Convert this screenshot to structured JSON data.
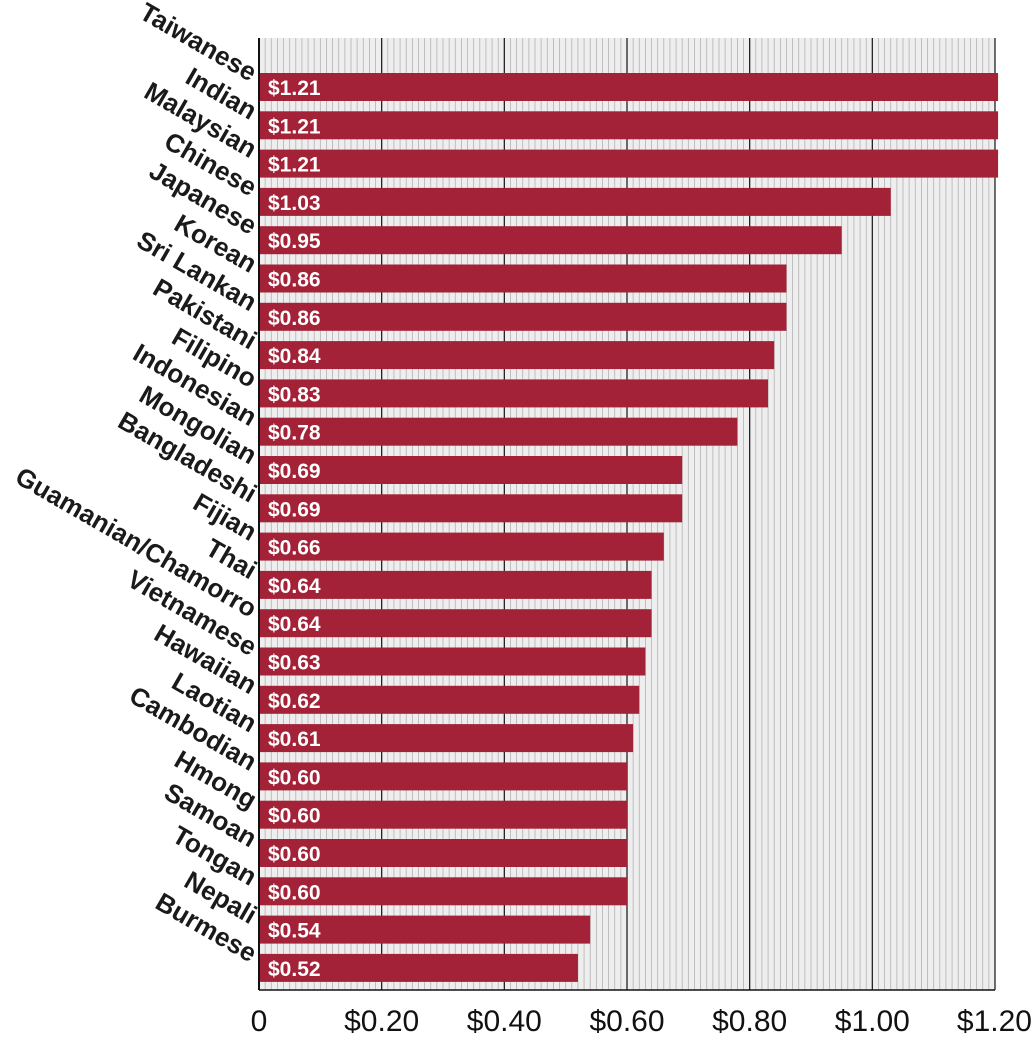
{
  "chart_data": {
    "type": "bar",
    "orientation": "horizontal",
    "title": "",
    "xlabel": "",
    "ylabel": "",
    "xlim": [
      0,
      1.2
    ],
    "x_ticks": [
      0,
      0.2,
      0.4,
      0.6,
      0.8,
      1.0,
      1.2
    ],
    "x_tick_labels": [
      "0",
      "$0.20",
      "$0.40",
      "$0.60",
      "$0.80",
      "$1.00",
      "$1.20"
    ],
    "grid": true,
    "categories": [
      "Taiwanese",
      "Indian",
      "Malaysian",
      "Chinese",
      "Japanese",
      "Korean",
      "Sri Lankan",
      "Pakistani",
      "Filipino",
      "Indonesian",
      "Mongolian",
      "Bangladeshi",
      "Fijian",
      "Thai",
      "Guamanian/Chamorro",
      "Vietnamese",
      "Hawaiian",
      "Laotian",
      "Cambodian",
      "Hmong",
      "Samoan",
      "Tongan",
      "Nepali",
      "Burmese"
    ],
    "values": [
      1.21,
      1.21,
      1.21,
      1.03,
      0.95,
      0.86,
      0.86,
      0.84,
      0.83,
      0.78,
      0.69,
      0.69,
      0.66,
      0.64,
      0.64,
      0.63,
      0.62,
      0.61,
      0.6,
      0.6,
      0.6,
      0.6,
      0.54,
      0.52
    ],
    "value_labels": [
      "$1.21",
      "$1.21",
      "$1.21",
      "$1.03",
      "$0.95",
      "$0.86",
      "$0.86",
      "$0.84",
      "$0.83",
      "$0.78",
      "$0.69",
      "$0.69",
      "$0.66",
      "$0.64",
      "$0.64",
      "$0.63",
      "$0.62",
      "$0.61",
      "$0.60",
      "$0.60",
      "$0.60",
      "$0.60",
      "$0.54",
      "$0.52"
    ],
    "colors": {
      "bar": "#a32237",
      "plot_background": "#eeeeee",
      "minor_grid": "#b3b3b3",
      "major_grid": "#222222",
      "axis": "#111111",
      "bar_label": "#ffffff",
      "category_label": "#1a1a1a"
    }
  }
}
